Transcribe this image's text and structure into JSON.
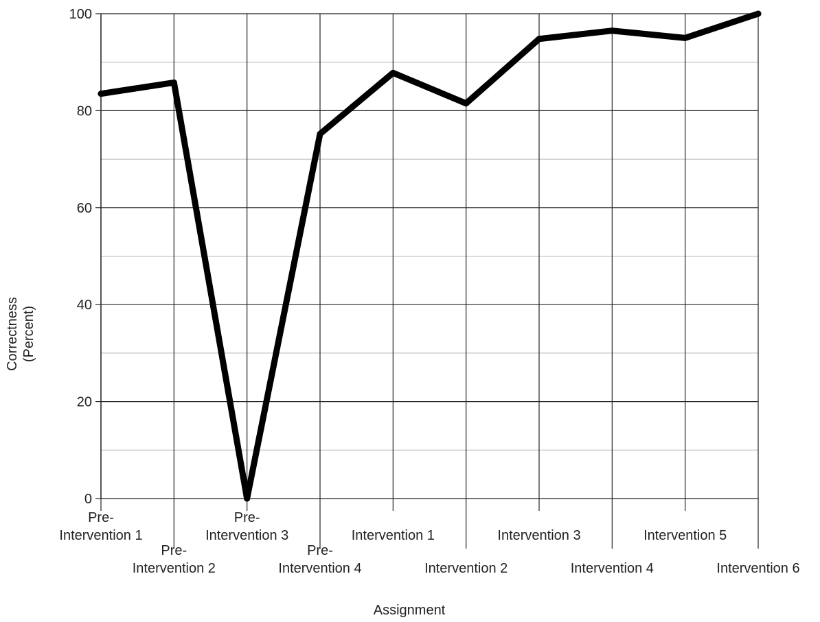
{
  "chart_data": {
    "type": "line",
    "title": "",
    "xlabel": "Assignment",
    "ylabel": [
      "Correctness",
      "(Percent)"
    ],
    "ylim": [
      0,
      100
    ],
    "yticks": [
      0,
      20,
      40,
      60,
      80,
      100
    ],
    "minor_gridlines": true,
    "grid": true,
    "line_color": "#000000",
    "categories": [
      [
        "Pre-",
        "Intervention 1"
      ],
      [
        "Pre-",
        "Intervention 2"
      ],
      [
        "Pre-",
        "Intervention 3"
      ],
      [
        "Pre-",
        "Intervention 4"
      ],
      [
        "Intervention 1"
      ],
      [
        "Intervention 2"
      ],
      [
        "Intervention 3"
      ],
      [
        "Intervention 4"
      ],
      [
        "Intervention 5"
      ],
      [
        "Intervention 6"
      ]
    ],
    "series": [
      {
        "values": [
          83.5,
          85.8,
          0,
          75.2,
          87.8,
          81.5,
          94.8,
          96.5,
          95.0,
          100
        ]
      }
    ]
  }
}
